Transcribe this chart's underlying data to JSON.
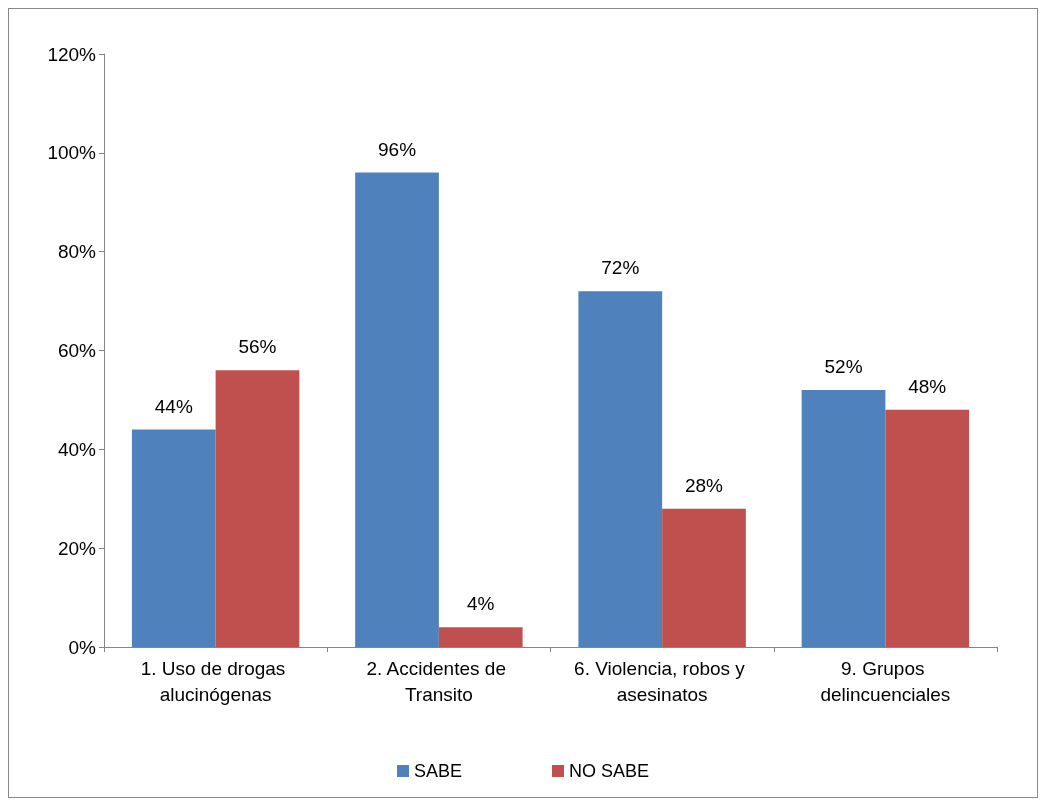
{
  "chart_data": {
    "type": "bar",
    "categories": [
      "1. Uso de drogas alucinógenas",
      "2. Accidentes de Transito",
      "6. Violencia, robos y asesinatos",
      "9. Grupos delincuenciales"
    ],
    "series": [
      {
        "name": "SABE",
        "color": "#4f81bd",
        "values": [
          44,
          96,
          72,
          52
        ],
        "value_labels": [
          "44%",
          "96%",
          "72%",
          "52%"
        ]
      },
      {
        "name": "NO SABE",
        "color": "#c0504d",
        "values": [
          56,
          4,
          28,
          48
        ],
        "value_labels": [
          "56%",
          "4%",
          "28%",
          "48%"
        ]
      }
    ],
    "ylim": [
      0,
      120
    ],
    "yticks": [
      {
        "value": 0,
        "label": "0%"
      },
      {
        "value": 20,
        "label": "20%"
      },
      {
        "value": 40,
        "label": "40%"
      },
      {
        "value": 60,
        "label": "60%"
      },
      {
        "value": 80,
        "label": "80%"
      },
      {
        "value": 100,
        "label": "100%"
      },
      {
        "value": 120,
        "label": "120%"
      }
    ],
    "grid": false,
    "legend": "bottom"
  }
}
